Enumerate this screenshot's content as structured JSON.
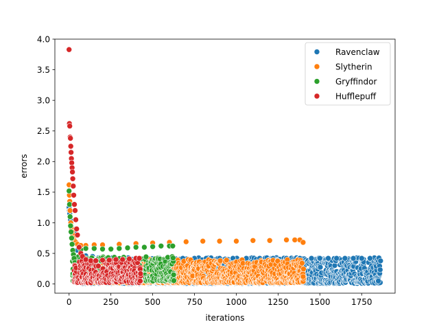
{
  "chart_data": {
    "type": "scatter",
    "xlabel": "iterations",
    "ylabel": "errors",
    "xlim": [
      -85,
      1950
    ],
    "ylim": [
      -0.15,
      4.0
    ],
    "xticks": [
      0,
      250,
      500,
      750,
      1000,
      1250,
      1500,
      1750
    ],
    "yticks": [
      0.0,
      0.5,
      1.0,
      1.5,
      2.0,
      2.5,
      3.0,
      3.5,
      4.0
    ],
    "xtick_labels": [
      "0",
      "250",
      "500",
      "750",
      "1000",
      "1250",
      "1500",
      "1750"
    ],
    "ytick_labels": [
      "0.0",
      "0.5",
      "1.0",
      "1.5",
      "2.0",
      "2.5",
      "3.0",
      "3.5",
      "4.0"
    ],
    "grid": false,
    "legend_position": "top-right",
    "series": [
      {
        "name": "Ravenclaw",
        "color": "#1f77b4",
        "x": [
          0,
          2,
          4,
          6,
          8,
          10,
          12,
          15,
          18,
          22,
          26,
          30,
          35,
          40,
          50,
          70,
          100,
          140,
          200,
          260,
          330,
          400,
          470,
          540,
          610,
          680,
          750,
          820,
          900,
          980,
          1060,
          1140,
          1220,
          1300,
          1380,
          1450,
          1500,
          1550,
          1600,
          1650,
          1700,
          1750,
          1800,
          1850
        ],
        "y": [
          1.25,
          1.2,
          1.15,
          1.1,
          1.05,
          1.0,
          0.95,
          0.9,
          0.88,
          0.9,
          0.88,
          0.85,
          0.78,
          0.68,
          0.55,
          0.48,
          0.46,
          0.45,
          0.44,
          0.43,
          0.43,
          0.42,
          0.42,
          0.42,
          0.42,
          0.42,
          0.42,
          0.42,
          0.42,
          0.42,
          0.42,
          0.42,
          0.42,
          0.42,
          0.42,
          0.42,
          0.42,
          0.42,
          0.42,
          0.42,
          0.42,
          0.42,
          0.42,
          0.05
        ],
        "band_x": [
          50,
          1860
        ],
        "band_y": [
          0.01,
          0.43
        ]
      },
      {
        "name": "Slytherin",
        "color": "#ff7f0e",
        "x": [
          0,
          2,
          4,
          6,
          8,
          10,
          12,
          15,
          18,
          22,
          26,
          30,
          35,
          40,
          50,
          70,
          100,
          150,
          200,
          300,
          400,
          500,
          600,
          700,
          800,
          900,
          1000,
          1100,
          1200,
          1300,
          1350,
          1380,
          1400,
          1400
        ],
        "y": [
          1.62,
          1.45,
          1.35,
          1.2,
          1.1,
          1.0,
          0.95,
          0.9,
          0.85,
          0.8,
          0.75,
          0.72,
          0.7,
          0.68,
          0.65,
          0.63,
          0.63,
          0.64,
          0.64,
          0.65,
          0.66,
          0.67,
          0.68,
          0.69,
          0.7,
          0.7,
          0.7,
          0.71,
          0.71,
          0.72,
          0.72,
          0.72,
          0.68,
          0.12
        ],
        "band_x": [
          40,
          1400
        ],
        "band_y": [
          0.02,
          0.4
        ]
      },
      {
        "name": "Gryffindor",
        "color": "#2ca02c",
        "x": [
          0,
          3,
          6,
          9,
          12,
          15,
          18,
          22,
          26,
          30,
          35,
          40,
          50,
          70,
          100,
          150,
          200,
          250,
          300,
          350,
          400,
          450,
          500,
          550,
          600,
          620,
          625
        ],
        "y": [
          1.52,
          1.3,
          1.1,
          0.95,
          0.85,
          0.75,
          0.65,
          0.55,
          0.48,
          0.42,
          0.35,
          0.28,
          0.22,
          0.56,
          0.58,
          0.58,
          0.57,
          0.57,
          0.58,
          0.59,
          0.6,
          0.6,
          0.61,
          0.62,
          0.62,
          0.62,
          0.15
        ],
        "band_x": [
          20,
          625
        ],
        "band_y": [
          0.05,
          0.45
        ]
      },
      {
        "name": "Hufflepuff",
        "color": "#d62728",
        "x": [
          0,
          2,
          4,
          6,
          8,
          10,
          12,
          14,
          16,
          18,
          20,
          22,
          25,
          28,
          32,
          36,
          40,
          45,
          50,
          60,
          70,
          80,
          100,
          130,
          160,
          200,
          240,
          280,
          320,
          360,
          400,
          420,
          425
        ],
        "y": [
          3.83,
          2.62,
          2.58,
          2.4,
          2.38,
          2.25,
          2.15,
          2.05,
          1.98,
          1.9,
          1.83,
          1.72,
          1.6,
          1.45,
          1.3,
          1.2,
          1.05,
          0.9,
          0.8,
          0.6,
          0.5,
          0.45,
          0.4,
          0.38,
          0.38,
          0.39,
          0.39,
          0.4,
          0.4,
          0.41,
          0.42,
          0.42,
          0.05
        ],
        "band_x": [
          30,
          425
        ],
        "band_y": [
          0.02,
          0.38
        ]
      }
    ]
  }
}
